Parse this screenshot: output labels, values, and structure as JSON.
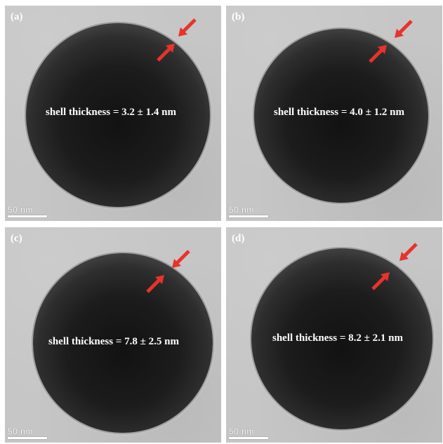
{
  "figure": {
    "panels": [
      {
        "label": "(a)",
        "thickness_text": "shell thickness = 3.2 ± 1.4 nm",
        "scale_bar": "50 nm"
      },
      {
        "label": "(b)",
        "thickness_text": "shell thickness = 4.0 ± 1.2 nm",
        "scale_bar": "50 nm"
      },
      {
        "label": "(c)",
        "thickness_text": "shell thickness = 7.8 ± 2.5 nm",
        "scale_bar": "50 nm"
      },
      {
        "label": "(d)",
        "thickness_text": "shell thickness = 8.2 ± 2.1 nm",
        "scale_bar": "50 nm"
      }
    ],
    "colors": {
      "background": "#c6c6c6",
      "particle_core": "#121212",
      "arrow": "#e8322c",
      "text": "#ffffff"
    }
  }
}
